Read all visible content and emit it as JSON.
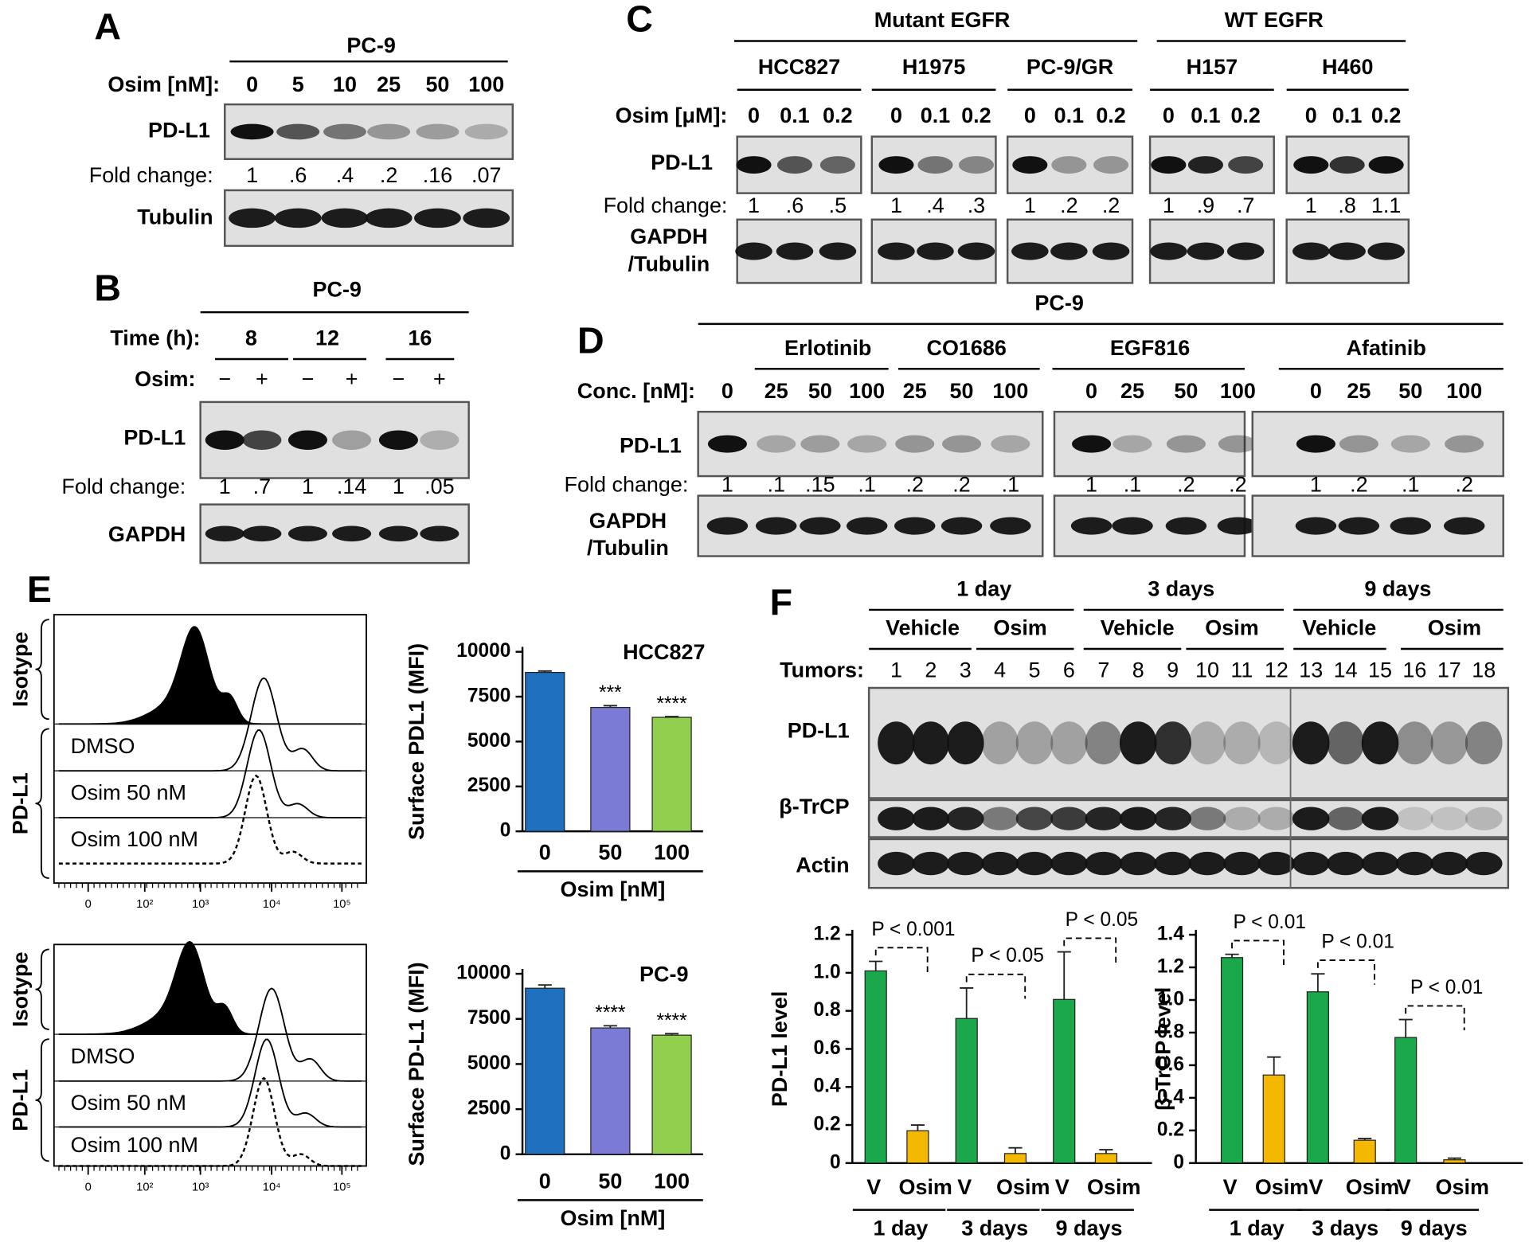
{
  "panel_labels": [
    "A",
    "B",
    "C",
    "D",
    "E",
    "F"
  ],
  "panel_a": {
    "cell_line": "PC-9",
    "dose_label": "Osim [nM]:",
    "doses": [
      "0",
      "5",
      "10",
      "25",
      "50",
      "100"
    ],
    "pdl1": "PD-L1",
    "fold_label": "Fold change:",
    "fold": [
      "1",
      ".6",
      ".4",
      ".2",
      ".16",
      ".07"
    ],
    "loading": "Tubulin"
  },
  "panel_b": {
    "cell_line": "PC-9",
    "time_label": "Time (h):",
    "times": [
      "8",
      "12",
      "16"
    ],
    "osim_label": "Osim:",
    "treatment": [
      "−",
      "+",
      "−",
      "+",
      "−",
      "+"
    ],
    "pdl1": "PD-L1",
    "fold_label": "Fold change:",
    "fold": [
      "1",
      ".7",
      "1",
      ".14",
      "1",
      ".05"
    ],
    "loading": "GAPDH"
  },
  "panel_c": {
    "mutant_label": "Mutant EGFR",
    "wt_label": "WT EGFR",
    "dose_label": "Osim [μM]:",
    "pdl1": "PD-L1",
    "fold_label": "Fold change:",
    "loading": [
      "GAPDH",
      "/Tubulin"
    ],
    "cell_lines": [
      {
        "name": "HCC827",
        "doses": [
          "0",
          "0.1",
          "0.2"
        ],
        "fold": [
          "1",
          ".6",
          ".5"
        ]
      },
      {
        "name": "H1975",
        "doses": [
          "0",
          "0.1",
          "0.2"
        ],
        "fold": [
          "1",
          ".4",
          ".3"
        ]
      },
      {
        "name": "PC-9/GR",
        "doses": [
          "0",
          "0.1",
          "0.2"
        ],
        "fold": [
          "1",
          ".2",
          ".2"
        ]
      },
      {
        "name": "H157",
        "doses": [
          "0",
          "0.1",
          "0.2"
        ],
        "fold": [
          "1",
          ".9",
          ".7"
        ]
      },
      {
        "name": "H460",
        "doses": [
          "0",
          "0.1",
          "0.2"
        ],
        "fold": [
          "1",
          ".8",
          "1.1"
        ]
      }
    ]
  },
  "panel_d": {
    "cell_line": "PC-9",
    "drugs": [
      "Erlotinib",
      "CO1686",
      "EGF816",
      "Afatinib"
    ],
    "dose_label": "Conc. [nM]:",
    "pdl1": "PD-L1",
    "fold_label": "Fold change:",
    "loading": [
      "GAPDH",
      "/Tubulin"
    ],
    "doses": [
      [
        "0",
        "25",
        "50",
        "100",
        "25",
        "50",
        "100"
      ],
      [
        "0",
        "25",
        "50",
        "100"
      ],
      [
        "0",
        "25",
        "50",
        "100"
      ]
    ],
    "fold": [
      [
        "1",
        ".1",
        ".15",
        ".1",
        ".2",
        ".2",
        ".1"
      ],
      [
        "1",
        ".1",
        ".2",
        ".2"
      ],
      [
        "1",
        ".2",
        ".1",
        ".2"
      ]
    ]
  },
  "panel_e": {
    "histograms": [
      {
        "isotype": "Isotype",
        "pdl1": "PD-L1",
        "conditions": [
          "DMSO",
          "Osim 50 nM",
          "Osim 100 nM"
        ],
        "axis_ticks": [
          "0",
          "10²",
          "10³",
          "10⁴",
          "10⁵"
        ]
      },
      {
        "isotype": "Isotype",
        "pdl1": "PD-L1",
        "conditions": [
          "DMSO",
          "Osim 50 nM",
          "Osim 100 nM"
        ],
        "axis_ticks": [
          "0",
          "10²",
          "10³",
          "10⁴",
          "10⁵"
        ]
      }
    ]
  },
  "panel_f": {
    "periods": [
      "1 day",
      "3 days",
      "9 days"
    ],
    "treatments": [
      "Vehicle",
      "Osim",
      "Vehicle",
      "Osim",
      "Vehicle",
      "Osim"
    ],
    "tumor_label": "Tumors:",
    "tumors": [
      "1",
      "2",
      "3",
      "4",
      "5",
      "6",
      "7",
      "8",
      "9",
      "10",
      "11",
      "12",
      "13",
      "14",
      "15",
      "16",
      "17",
      "18"
    ],
    "rows": [
      "PD-L1",
      "β-TrCP",
      "Actin"
    ]
  },
  "chart_data": [
    {
      "type": "bar",
      "title": "HCC827",
      "y_label": "Surface PDL1 (MFI)",
      "x_label": "Osim [nM]",
      "categories": [
        "0",
        "50",
        "100"
      ],
      "values": [
        8850,
        6900,
        6350
      ],
      "errors": [
        80,
        100,
        40
      ],
      "colors": [
        "#1f6fbf",
        "#7b7bd6",
        "#92cf4e"
      ],
      "significance": [
        null,
        "***",
        "****"
      ],
      "ylim": [
        0,
        10000
      ],
      "yticks": [
        0,
        2500,
        5000,
        7500,
        10000
      ]
    },
    {
      "type": "bar",
      "title": "PC-9",
      "y_label": "Surface PD-L1 (MFI)",
      "x_label": "Osim [nM]",
      "categories": [
        "0",
        "50",
        "100"
      ],
      "values": [
        9200,
        7000,
        6600
      ],
      "errors": [
        180,
        120,
        80
      ],
      "colors": [
        "#1f6fbf",
        "#7b7bd6",
        "#92cf4e"
      ],
      "significance": [
        null,
        "****",
        "****"
      ],
      "ylim": [
        0,
        10000
      ],
      "yticks": [
        0,
        2500,
        5000,
        7500,
        10000
      ]
    },
    {
      "type": "bar",
      "y_label": "PD-L1 level",
      "groups": [
        "1 day",
        "3 days",
        "9 days"
      ],
      "series": [
        {
          "name": "V",
          "color": "#1aa84b",
          "values": [
            1.01,
            0.76,
            0.86
          ],
          "errors": [
            0.05,
            0.16,
            0.25
          ]
        },
        {
          "name": "Osim",
          "color": "#f5b800",
          "values": [
            0.17,
            0.05,
            0.05
          ],
          "errors": [
            0.03,
            0.03,
            0.02
          ]
        }
      ],
      "annotations": [
        "P < 0.001",
        "P < 0.05",
        "P < 0.05"
      ],
      "ylim": [
        0,
        1.2
      ],
      "yticks": [
        0,
        0.2,
        0.4,
        0.6,
        0.8,
        {
          "value": 1,
          "label": "1.0"
        },
        1.2
      ]
    },
    {
      "type": "bar",
      "y_label": "β-TrCP level",
      "groups": [
        "1 day",
        "3 days",
        "9 days"
      ],
      "series": [
        {
          "name": "V",
          "color": "#1aa84b",
          "values": [
            1.26,
            1.05,
            0.77
          ],
          "errors": [
            0.02,
            0.11,
            0.11
          ]
        },
        {
          "name": "Osim",
          "color": "#f5b800",
          "values": [
            0.54,
            0.14,
            0.02
          ],
          "errors": [
            0.11,
            0.01,
            0.01
          ]
        }
      ],
      "annotations": [
        "P < 0.01",
        "P < 0.01",
        "P < 0.01"
      ],
      "ylim": [
        0,
        1.4
      ],
      "yticks": [
        0,
        0.2,
        0.4,
        0.6,
        0.8,
        {
          "value": 1,
          "label": "1.0"
        },
        1.2,
        1.4
      ]
    }
  ]
}
